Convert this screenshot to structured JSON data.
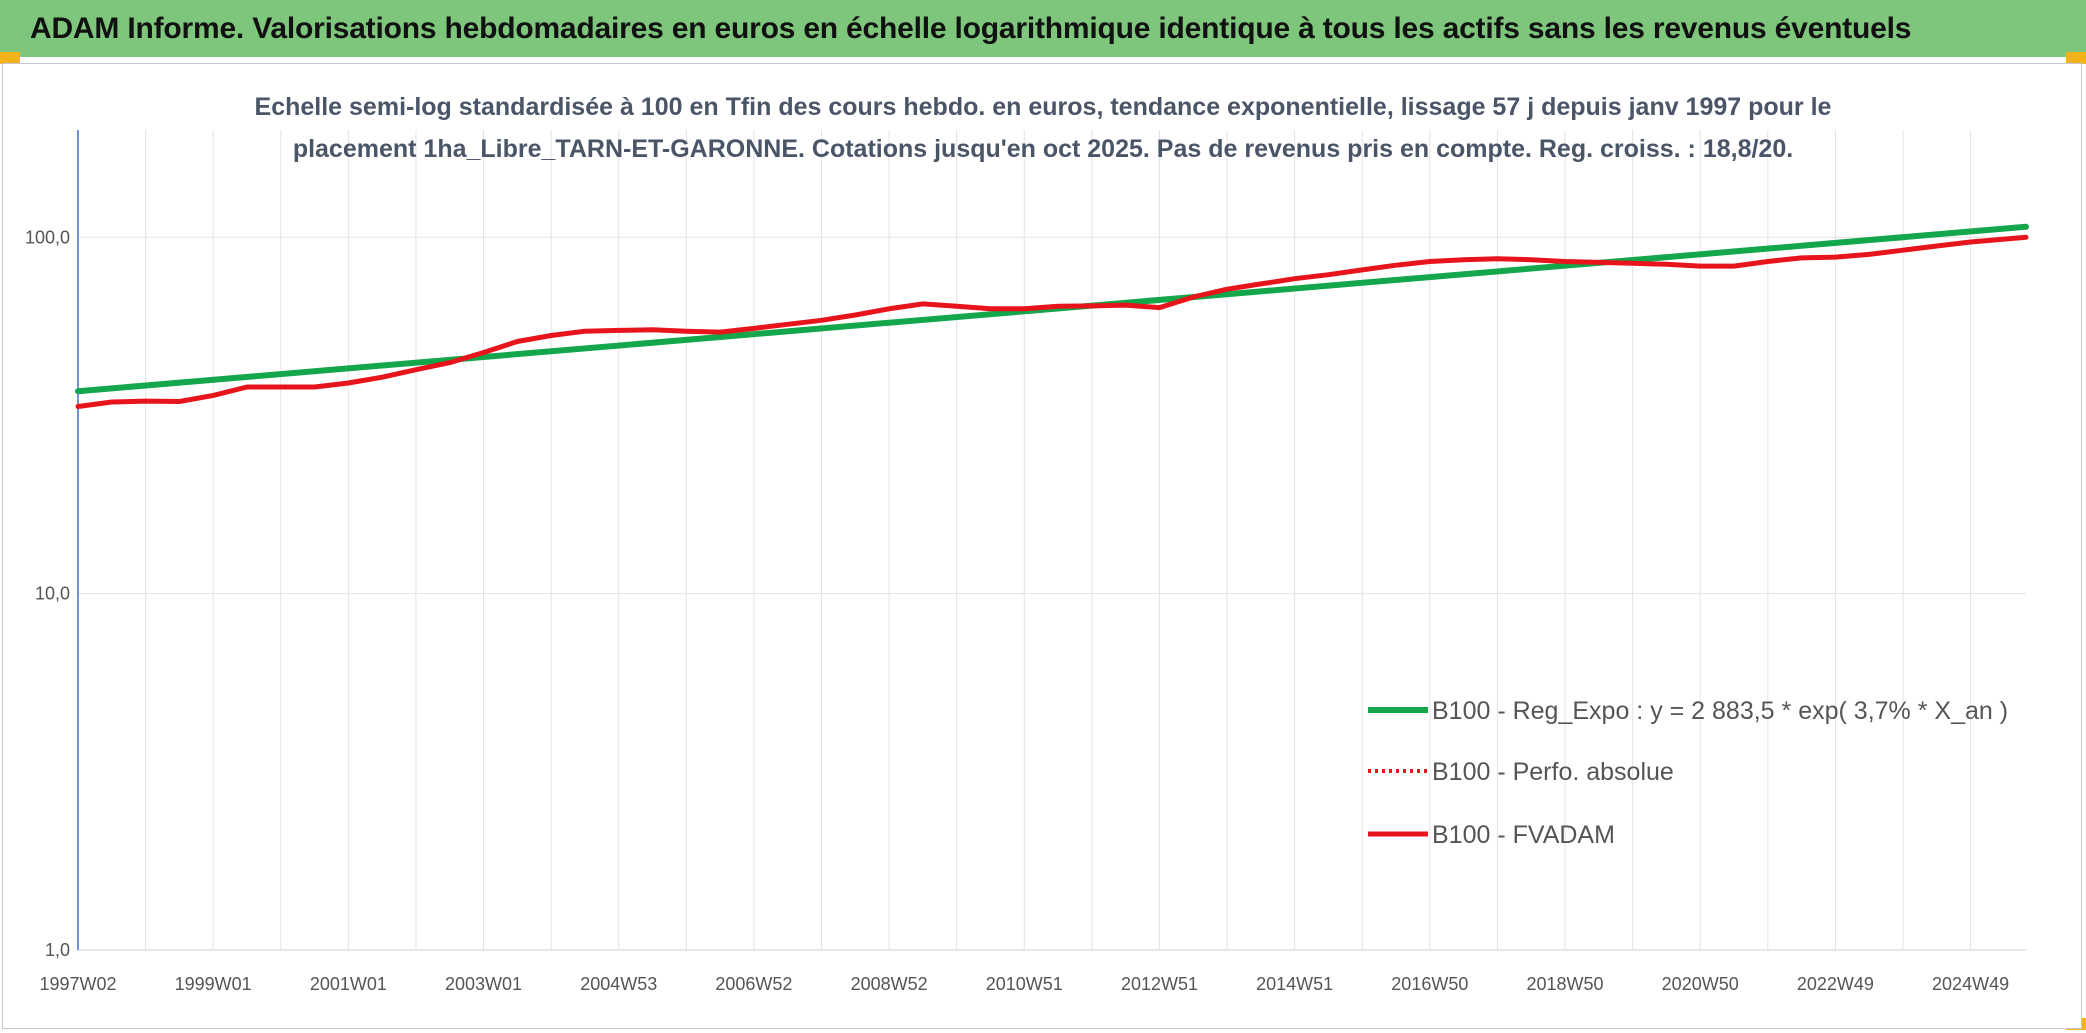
{
  "header": {
    "title": "ADAM Informe. Valorisations hebdomadaires en euros en échelle logarithmique identique à tous les actifs sans les revenus éventuels"
  },
  "colors": {
    "banner": "#7dc67b",
    "corner": "#f2b21a",
    "trend": "#13a64a",
    "fvadam": "#e8141c",
    "perfo": "#e8141c",
    "grid": "#e3e3e3",
    "axis": "#4472c4"
  },
  "chart_data": {
    "type": "line",
    "title_lines": [
      "Echelle semi-log standardisée à 100 en Tfin des cours hebdo. en euros, tendance exponentielle, lissage 57 j depuis janv 1997 pour le",
      "placement 1ha_Libre_TARN-ET-GARONNE. Cotations jusqu'en oct 2025. Pas de revenus pris en compte. Reg. croiss. : 18,8/20."
    ],
    "y_scale": "log",
    "ylim": [
      1,
      200
    ],
    "xlim": [
      1997.0,
      2025.82
    ],
    "y_tick_values": [
      1,
      10,
      100
    ],
    "y_tick_labels": [
      "1,0",
      "10,0",
      "100,0"
    ],
    "x_tick_labels": [
      "1997W02",
      "1999W01",
      "2001W01",
      "2003W01",
      "2004W53",
      "2006W52",
      "2008W52",
      "2010W51",
      "2012W51",
      "2014W51",
      "2016W50",
      "2018W50",
      "2020W50",
      "2022W49",
      "2024W49"
    ],
    "x_tick_positions": [
      1997.0,
      1999.0,
      2001.0,
      2003.0,
      2005.0,
      2007.0,
      2009.0,
      2011.0,
      2013.0,
      2015.0,
      2017.0,
      2019.0,
      2021.0,
      2023.0,
      2025.0
    ],
    "grid": true,
    "legend_position": "bottom-right",
    "series": [
      {
        "name": "B100 - Reg_Expo : y = 2 883,5 * exp( 3,7% *  X_an )",
        "style": "solid-thick",
        "x": [
          1997.0,
          2025.82
        ],
        "y": [
          37.0,
          107.0
        ]
      },
      {
        "name": "B100 - Perfo. absolue",
        "style": "dotted",
        "x": [],
        "y": []
      },
      {
        "name": "B100 - FVADAM",
        "style": "solid-thick",
        "x": [
          1997.0,
          1997.5,
          1998.0,
          1998.5,
          1999.0,
          1999.5,
          2000.0,
          2000.5,
          2001.0,
          2001.5,
          2002.0,
          2002.5,
          2003.0,
          2003.5,
          2004.0,
          2004.5,
          2005.0,
          2005.5,
          2006.0,
          2006.5,
          2007.0,
          2007.5,
          2008.0,
          2008.5,
          2009.0,
          2009.5,
          2010.0,
          2010.5,
          2011.0,
          2011.5,
          2012.0,
          2012.5,
          2013.0,
          2013.5,
          2014.0,
          2014.5,
          2015.0,
          2015.5,
          2016.0,
          2016.5,
          2017.0,
          2017.5,
          2018.0,
          2018.5,
          2019.0,
          2019.5,
          2020.0,
          2020.5,
          2021.0,
          2021.5,
          2022.0,
          2022.5,
          2023.0,
          2023.5,
          2024.0,
          2024.5,
          2025.0,
          2025.82
        ],
        "y": [
          33.5,
          34.5,
          34.7,
          34.6,
          36.0,
          38.0,
          38.0,
          38.0,
          39.0,
          40.5,
          42.5,
          44.5,
          47.5,
          51.0,
          53.0,
          54.5,
          54.8,
          55.0,
          54.5,
          54.2,
          55.5,
          57.0,
          58.5,
          60.5,
          63.0,
          65.0,
          64.0,
          63.0,
          63.0,
          64.0,
          64.2,
          64.5,
          63.5,
          68.0,
          71.5,
          74.0,
          76.5,
          78.5,
          81.0,
          83.5,
          85.5,
          86.5,
          87.0,
          86.5,
          85.5,
          85.0,
          84.5,
          84.0,
          83.0,
          83.0,
          85.5,
          87.5,
          88.0,
          89.5,
          92.0,
          94.5,
          97.0,
          100.0
        ]
      }
    ]
  }
}
